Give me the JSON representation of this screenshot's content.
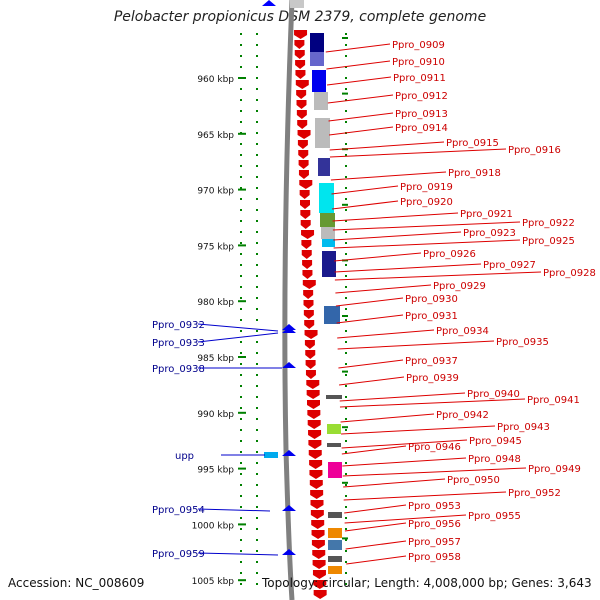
{
  "title": "Pelobacter propionicus DSM 2379, complete genome",
  "footer": {
    "accession": "Accession: NC_008609",
    "topology": "Topology: circular; Length: 4,008,000 bp; Genes: 3,643"
  },
  "colors": {
    "forward": "#0000cc",
    "reverse": "#dd0000",
    "backbone": "#808080",
    "tick": "#008000"
  },
  "scale": {
    "labels": [
      "960 kbp",
      "965 kbp",
      "970 kbp",
      "975 kbp",
      "980 kbp",
      "985 kbp",
      "990 kbp",
      "995 kbp",
      "1000 kbp",
      "1005 kbp"
    ]
  },
  "forward_labels": [
    "Ppro_0932",
    "Ppro_0933",
    "Ppro_0938",
    "upp",
    "Ppro_0954",
    "Ppro_0959"
  ],
  "reverse_labels": [
    "Ppro_0909",
    "Ppro_0910",
    "Ppro_0911",
    "Ppro_0912",
    "Ppro_0913",
    "Ppro_0914",
    "Ppro_0915",
    "Ppro_0916",
    "Ppro_0918",
    "Ppro_0919",
    "Ppro_0920",
    "Ppro_0921",
    "Ppro_0922",
    "Ppro_0923",
    "Ppro_0925",
    "Ppro_0926",
    "Ppro_0927",
    "Ppro_0928",
    "Ppro_0929",
    "Ppro_0930",
    "Ppro_0931",
    "Ppro_0934",
    "Ppro_0935",
    "Ppro_0937",
    "Ppro_0939",
    "Ppro_0940",
    "Ppro_0941",
    "Ppro_0942",
    "Ppro_0943",
    "Ppro_0945",
    "Ppro_0946",
    "Ppro_0948",
    "Ppro_0949",
    "Ppro_0950",
    "Ppro_0952",
    "Ppro_0953",
    "Ppro_0955",
    "Ppro_0956",
    "Ppro_0957",
    "Ppro_0958"
  ]
}
